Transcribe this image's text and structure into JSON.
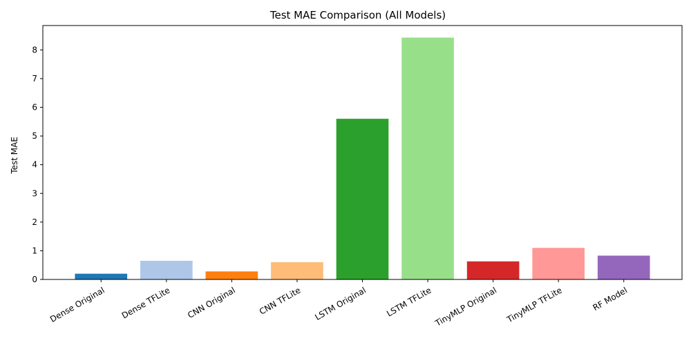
{
  "chart_data": {
    "type": "bar",
    "title": "Test MAE Comparison (All Models)",
    "xlabel": "",
    "ylabel": "Test MAE",
    "ylim": [
      0,
      8.85
    ],
    "yticks": [
      0,
      1,
      2,
      3,
      4,
      5,
      6,
      7,
      8
    ],
    "grid": false,
    "legend": "none",
    "categories": [
      "Dense Original",
      "Dense TFLite",
      "CNN Original",
      "CNN TFLite",
      "LSTM Original",
      "LSTM TFLite",
      "TinyMLP Original",
      "TinyMLP TFLite",
      "RF Model"
    ],
    "values": [
      0.2,
      0.65,
      0.28,
      0.6,
      5.6,
      8.43,
      0.63,
      1.1,
      0.83
    ],
    "colors": [
      "#1f77b4",
      "#aec7e8",
      "#ff7f0e",
      "#ffbb78",
      "#2ca02c",
      "#98df8a",
      "#d62728",
      "#ff9896",
      "#9467bd"
    ]
  }
}
